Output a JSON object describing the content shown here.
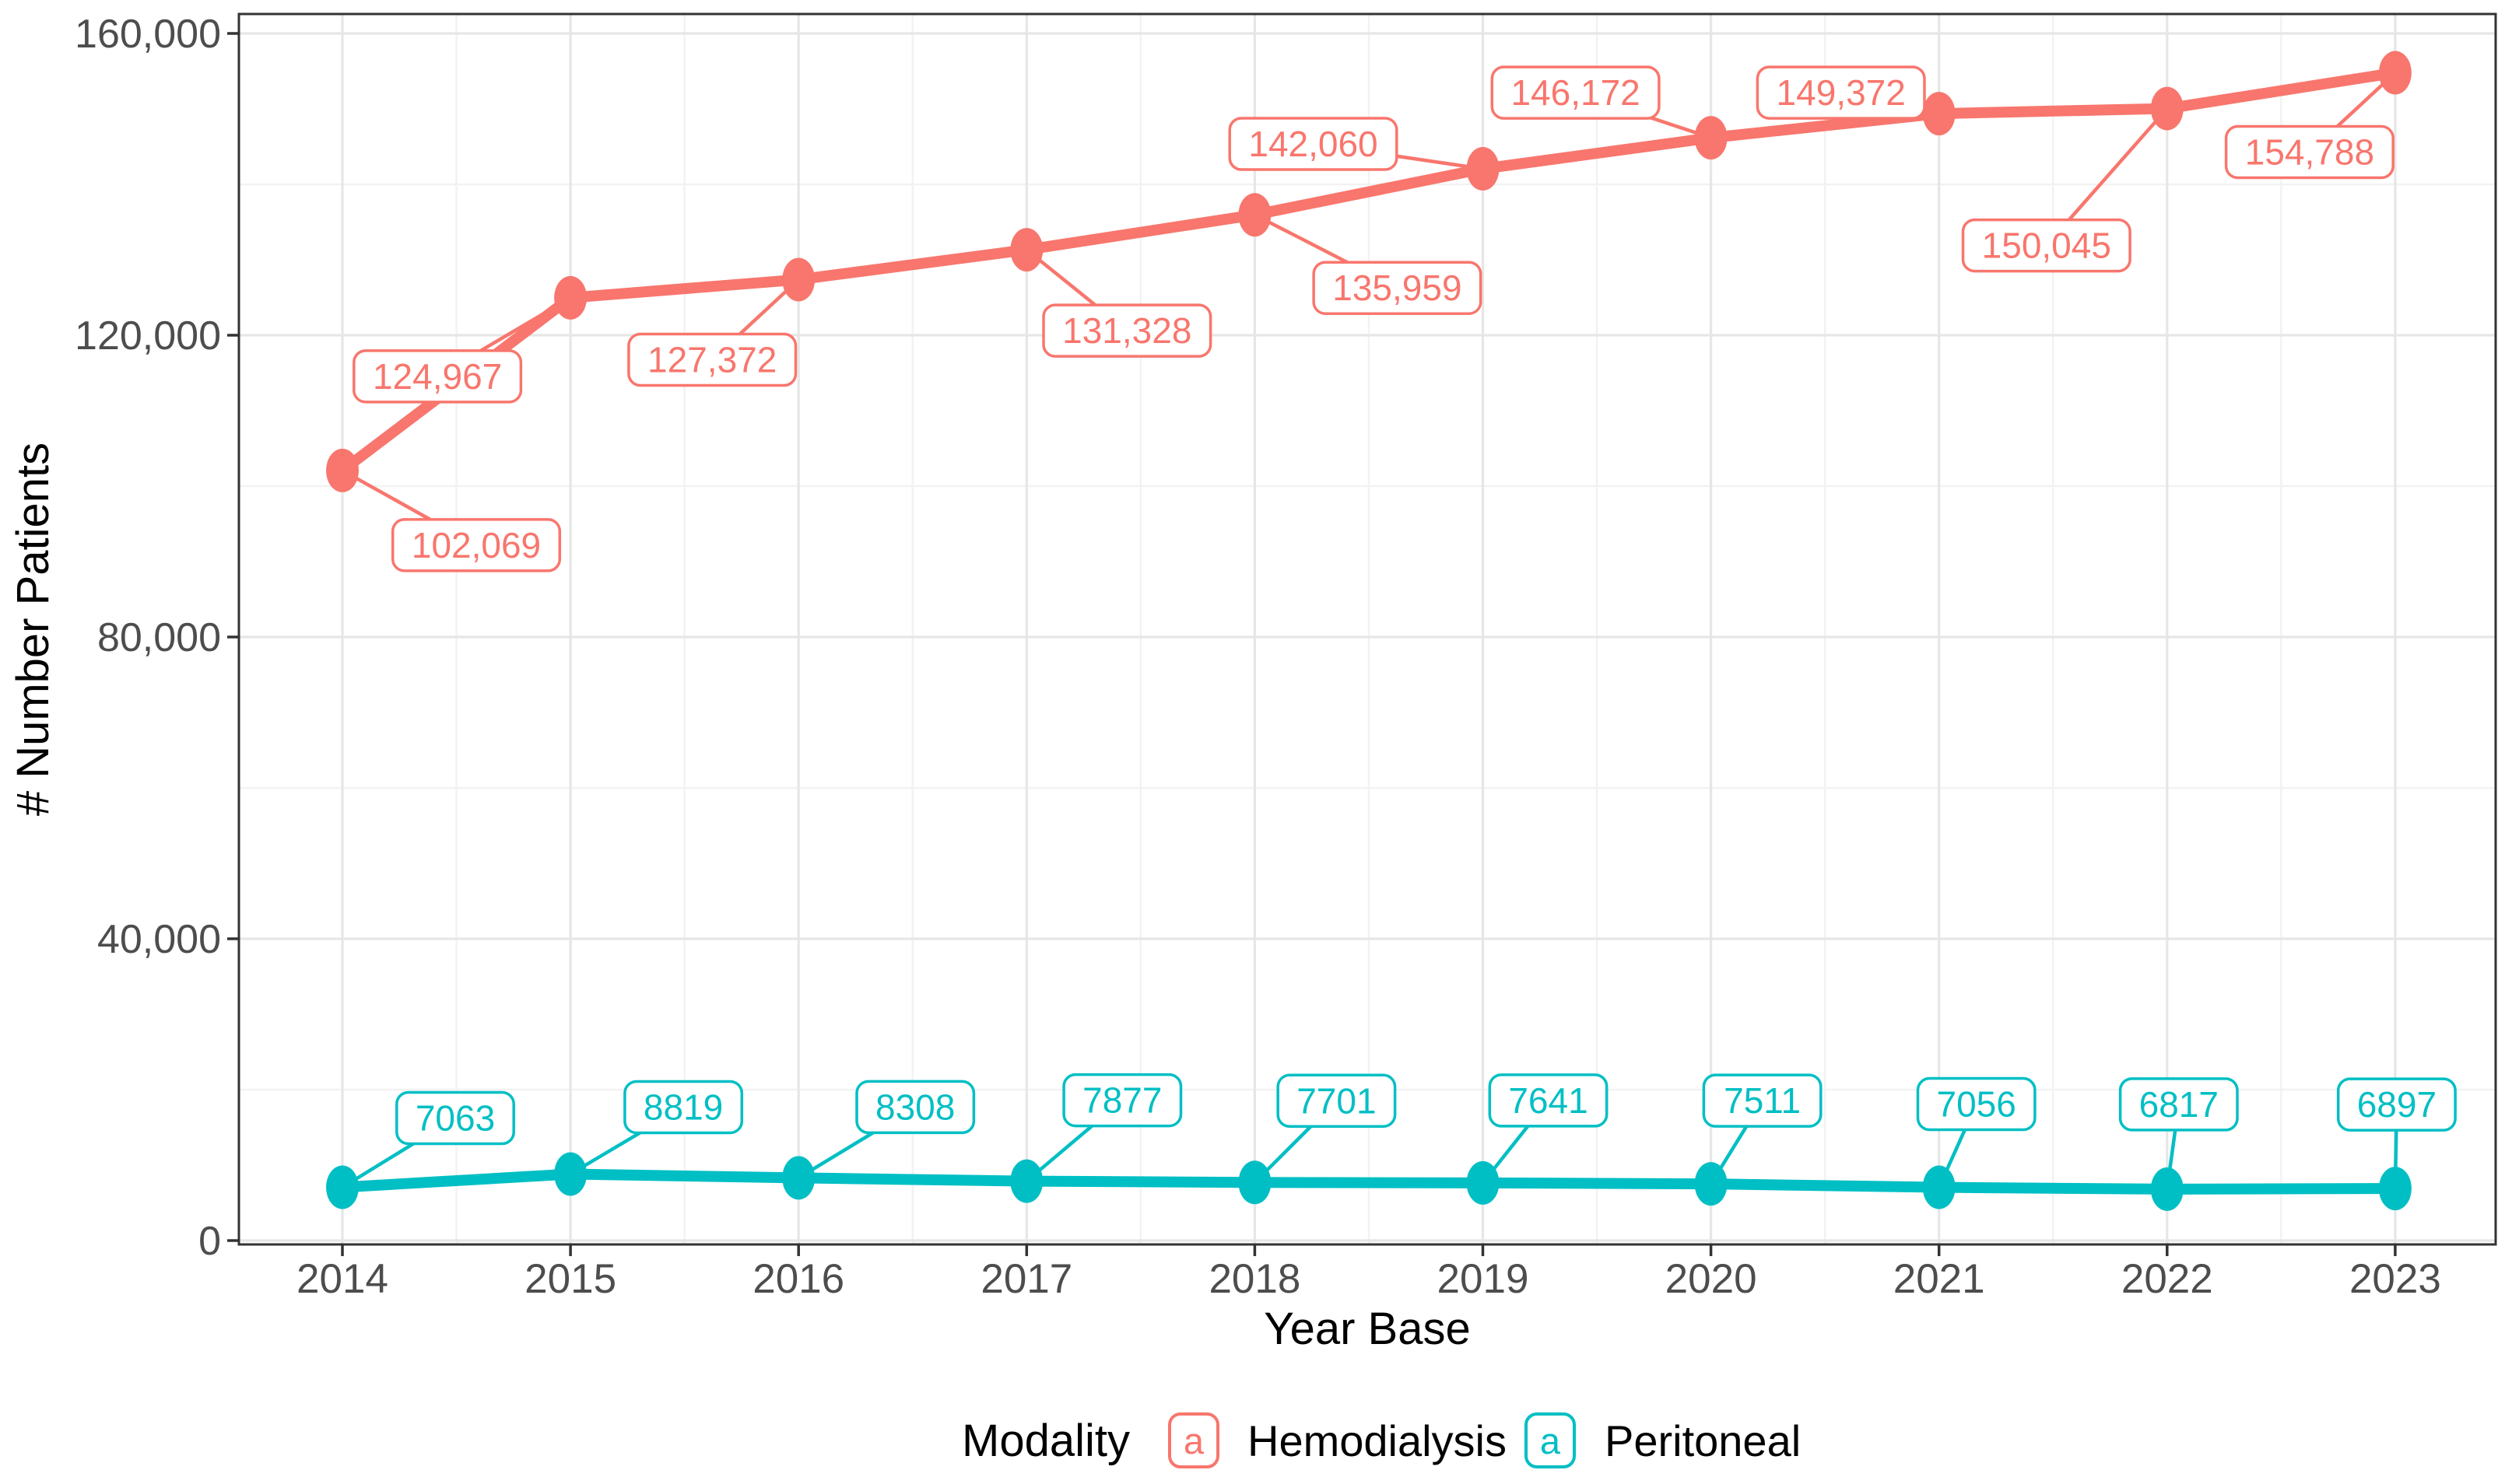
{
  "chart_data": {
    "type": "line",
    "title": "",
    "xlabel": "Year Base",
    "ylabel": "# Number Patients",
    "x": [
      2014,
      2015,
      2016,
      2017,
      2018,
      2019,
      2020,
      2021,
      2022,
      2023
    ],
    "xtick_labels": [
      "2014",
      "2015",
      "2016",
      "2017",
      "2018",
      "2019",
      "2020",
      "2021",
      "2022",
      "2023"
    ],
    "ylim": [
      0,
      160000
    ],
    "yticks": [
      0,
      40000,
      80000,
      120000,
      160000
    ],
    "ytick_labels": [
      "0",
      "40,000",
      "80,000",
      "120,000",
      "160,000"
    ],
    "minor_yticks": [
      20000,
      60000,
      100000,
      140000
    ],
    "minor_xticks": [
      2014.5,
      2015.5,
      2016.5,
      2017.5,
      2018.5,
      2019.5,
      2020.5,
      2021.5,
      2022.5
    ],
    "grid": {
      "major": true,
      "minor": true
    },
    "legend": {
      "title": "Modality",
      "position": "bottom",
      "key_label": "a"
    },
    "axis_text_color": "#4D4D4D",
    "grid_major_color": "#E6E6E6",
    "grid_minor_color": "#F2F2F2",
    "panel_border_color": "#333333",
    "series": [
      {
        "name": "Hemodialysis",
        "color": "#F8766D",
        "values": [
          102069,
          124967,
          127372,
          131328,
          135959,
          142060,
          146172,
          149372,
          150045,
          154788
        ],
        "labels": [
          "102,069",
          "124,967",
          "127,372",
          "131,328",
          "135,959",
          "142,060",
          "146,172",
          "149,372",
          "150,045",
          "154,788"
        ],
        "label_offsets": [
          [
            172,
            96
          ],
          [
            -171,
            101
          ],
          [
            -111,
            103
          ],
          [
            129,
            104
          ],
          [
            183,
            94
          ],
          [
            -218,
            -32
          ],
          [
            -174,
            -58
          ],
          [
            -126,
            -27
          ],
          [
            -155,
            176
          ],
          [
            -110,
            102
          ]
        ]
      },
      {
        "name": "Peritoneal",
        "color": "#00BFC4",
        "values": [
          7063,
          8819,
          8308,
          7877,
          7701,
          7641,
          7511,
          7056,
          6817,
          6897
        ],
        "labels": [
          "7063",
          "8819",
          "8308",
          "7877",
          "7701",
          "7641",
          "7511",
          "7056",
          "6817",
          "6897"
        ],
        "label_offsets": [
          [
            145,
            -89
          ],
          [
            145,
            -86
          ],
          [
            150,
            -91
          ],
          [
            123,
            -104
          ],
          [
            105,
            -105
          ],
          [
            84,
            -106
          ],
          [
            66,
            -107
          ],
          [
            48,
            -107
          ],
          [
            15,
            -109
          ],
          [
            2,
            -108
          ]
        ]
      }
    ]
  }
}
